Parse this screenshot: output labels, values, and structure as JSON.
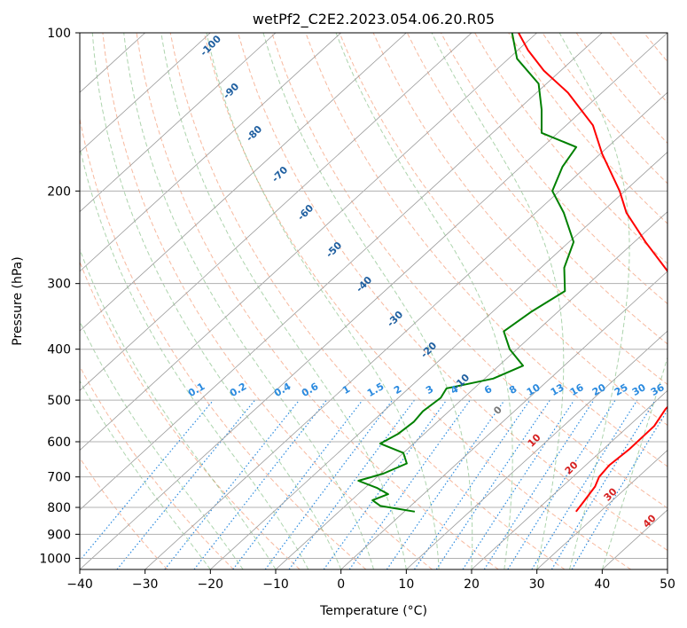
{
  "chart_data": {
    "type": "skew-t",
    "title": "wetPf2_C2E2.2023.054.06.20.R05",
    "xlabel": "Temperature (°C)",
    "ylabel": "Pressure (hPa)",
    "xlim": [
      -40,
      50
    ],
    "ylim": [
      1050,
      100
    ],
    "x_ticks": [
      -40,
      -30,
      -20,
      -10,
      0,
      10,
      20,
      30,
      40,
      50
    ],
    "x_tick_labels": [
      "−40",
      "−30",
      "−20",
      "−10",
      "0",
      "10",
      "20",
      "30",
      "40",
      "50"
    ],
    "p_ticks": [
      100,
      200,
      300,
      400,
      500,
      600,
      700,
      800,
      900,
      1000
    ],
    "p_tick_labels": [
      "100",
      "200",
      "300",
      "400",
      "500",
      "600",
      "700",
      "800",
      "900",
      "1000"
    ],
    "temperature_profile": {
      "name": "Temperature",
      "color": "#ff0000",
      "points": [
        {
          "p": 815,
          "t": 26.3
        },
        {
          "p": 780,
          "t": 25.8
        },
        {
          "p": 730,
          "t": 25.0
        },
        {
          "p": 700,
          "t": 24.0
        },
        {
          "p": 665,
          "t": 23.6
        },
        {
          "p": 620,
          "t": 24.0
        },
        {
          "p": 560,
          "t": 23.9
        },
        {
          "p": 520,
          "t": 22.8
        },
        {
          "p": 480,
          "t": 22.5
        },
        {
          "p": 450,
          "t": 23.3
        },
        {
          "p": 420,
          "t": 22.6
        },
        {
          "p": 380,
          "t": 17.6
        },
        {
          "p": 350,
          "t": 13.0
        },
        {
          "p": 300,
          "t": 3.5
        },
        {
          "p": 250,
          "t": -8.3
        },
        {
          "p": 220,
          "t": -16.1
        },
        {
          "p": 200,
          "t": -20.8
        },
        {
          "p": 170,
          "t": -29.7
        },
        {
          "p": 150,
          "t": -35.9
        },
        {
          "p": 130,
          "t": -45.2
        },
        {
          "p": 118,
          "t": -52.6
        },
        {
          "p": 108,
          "t": -58.4
        },
        {
          "p": 100,
          "t": -62.8
        }
      ]
    },
    "dewpoint_profile": {
      "name": "Dewpoint",
      "color": "#008000",
      "points": [
        {
          "p": 815,
          "t": 1.6
        },
        {
          "p": 795,
          "t": -4.6
        },
        {
          "p": 775,
          "t": -6.8
        },
        {
          "p": 755,
          "t": -5.4
        },
        {
          "p": 735,
          "t": -8.1
        },
        {
          "p": 712,
          "t": -12.2
        },
        {
          "p": 690,
          "t": -9.6
        },
        {
          "p": 660,
          "t": -7.7
        },
        {
          "p": 630,
          "t": -10.0
        },
        {
          "p": 605,
          "t": -15.1
        },
        {
          "p": 580,
          "t": -14.0
        },
        {
          "p": 550,
          "t": -13.6
        },
        {
          "p": 525,
          "t": -14.0
        },
        {
          "p": 495,
          "t": -13.5
        },
        {
          "p": 475,
          "t": -14.2
        },
        {
          "p": 455,
          "t": -8.7
        },
        {
          "p": 430,
          "t": -6.3
        },
        {
          "p": 400,
          "t": -11.1
        },
        {
          "p": 370,
          "t": -15.0
        },
        {
          "p": 340,
          "t": -14.1
        },
        {
          "p": 310,
          "t": -12.4
        },
        {
          "p": 280,
          "t": -16.4
        },
        {
          "p": 250,
          "t": -19.3
        },
        {
          "p": 220,
          "t": -25.7
        },
        {
          "p": 200,
          "t": -31.1
        },
        {
          "p": 180,
          "t": -33.6
        },
        {
          "p": 165,
          "t": -34.8
        },
        {
          "p": 155,
          "t": -42.5
        },
        {
          "p": 140,
          "t": -46.4
        },
        {
          "p": 125,
          "t": -51.2
        },
        {
          "p": 112,
          "t": -58.7
        },
        {
          "p": 100,
          "t": -63.8
        }
      ]
    },
    "isotherm_labels": [
      "-100",
      "-90",
      "-80",
      "-70",
      "-60",
      "-50",
      "-40",
      "-30",
      "-20",
      "-10",
      "0",
      "10",
      "20",
      "30",
      "40"
    ],
    "mixing_ratio_labels": [
      "0.1",
      "0.2",
      "0.4",
      "0.6",
      "1",
      "1.5",
      "2",
      "3",
      "4",
      "6",
      "8",
      "10",
      "13",
      "16",
      "20",
      "25",
      "30",
      "36"
    ],
    "colors": {
      "isotherm_label": "#1f5fa0",
      "isotherm_label_warm": "#d62020",
      "mixing_ratio": "#2a8adf",
      "zero_label": "#777777"
    }
  }
}
